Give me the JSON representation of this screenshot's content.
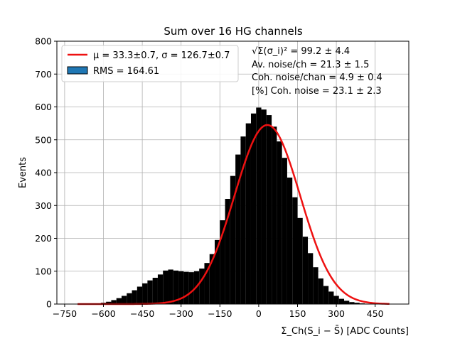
{
  "chart_data": {
    "type": "bar",
    "title": "Sum over 16 HG channels",
    "xlabel": "Σ_Ch(S_i − S̄) [ADC Counts]",
    "ylabel": "Events",
    "xlim": [
      -780,
      580
    ],
    "ylim": [
      0,
      800
    ],
    "x_ticks": [
      -750,
      -600,
      -450,
      -300,
      -150,
      0,
      150,
      300,
      450
    ],
    "x_tick_labels": [
      "−750",
      "−600",
      "−450",
      "−300",
      "−150",
      "0",
      "150",
      "300",
      "450"
    ],
    "y_ticks": [
      0,
      100,
      200,
      300,
      400,
      500,
      600,
      700,
      800
    ],
    "y_tick_labels": [
      "0",
      "100",
      "200",
      "300",
      "400",
      "500",
      "600",
      "700",
      "800"
    ],
    "grid": true,
    "legend_position": "top-left",
    "series": [
      {
        "name": "RMS = 164.61",
        "kind": "histogram",
        "color": "#000000",
        "legend_color": "#1f77b4",
        "x": [
          -680,
          -660,
          -640,
          -620,
          -600,
          -580,
          -560,
          -540,
          -520,
          -500,
          -480,
          -460,
          -440,
          -420,
          -400,
          -380,
          -360,
          -340,
          -320,
          -300,
          -280,
          -260,
          -240,
          -220,
          -200,
          -180,
          -160,
          -140,
          -120,
          -100,
          -80,
          -60,
          -40,
          -20,
          0,
          20,
          40,
          60,
          80,
          100,
          120,
          140,
          160,
          180,
          200,
          220,
          240,
          260,
          280,
          300,
          320,
          340,
          360,
          380,
          400,
          420,
          440,
          460,
          480,
          500
        ],
        "values": [
          0,
          0,
          1,
          2,
          4,
          7,
          12,
          18,
          25,
          33,
          42,
          53,
          63,
          72,
          80,
          90,
          102,
          105,
          102,
          100,
          98,
          97,
          100,
          108,
          125,
          152,
          195,
          255,
          320,
          390,
          455,
          510,
          550,
          580,
          598,
          592,
          575,
          540,
          495,
          445,
          385,
          325,
          262,
          205,
          155,
          112,
          78,
          55,
          38,
          25,
          16,
          10,
          6,
          4,
          2,
          1,
          1,
          0,
          0,
          0
        ]
      },
      {
        "name": "μ = 33.3±0.7, σ = 126.7±0.7",
        "kind": "gaussian_fit",
        "color": "#ee1111",
        "mu": 33.3,
        "sigma": 126.7,
        "amplitude": 545,
        "x_range": [
          -700,
          505
        ]
      }
    ],
    "annotations": [
      "√Σ(σ_i)² = 99.2 ± 4.4",
      "Av. noise/ch = 21.3 ± 1.5",
      "Coh. noise/chan = 4.9 ± 0.4",
      "[%] Coh. noise = 23.1 ± 2.3"
    ]
  }
}
